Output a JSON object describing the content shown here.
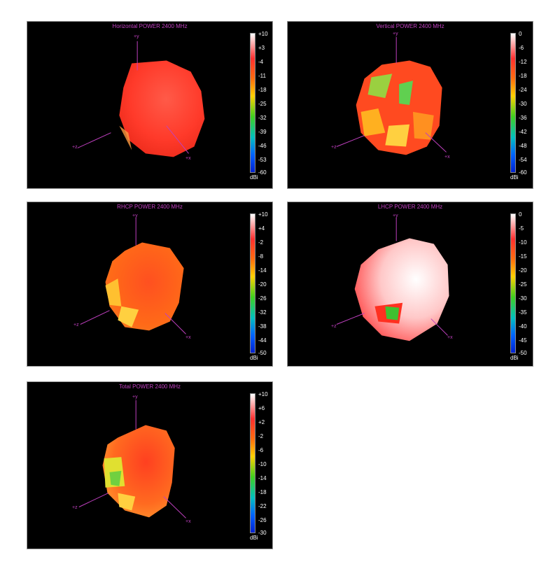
{
  "chart_data": [
    {
      "type": "heatmap",
      "title": "Horizontal POWER 2400  MHz",
      "unit": "dBi",
      "colorbar_ticks": [
        "+10",
        "+3",
        "-4",
        "-11",
        "-18",
        "-25",
        "-32",
        "-39",
        "-46",
        "-53",
        "-60"
      ],
      "axes": [
        "+y",
        "+x",
        "+z"
      ],
      "dominant_level": "-4"
    },
    {
      "type": "heatmap",
      "title": "Vertical POWER 2400  MHz",
      "unit": "dBi",
      "colorbar_ticks": [
        "0",
        "-6",
        "-12",
        "-18",
        "-24",
        "-30",
        "-36",
        "-42",
        "-48",
        "-54",
        "-60"
      ],
      "axes": [
        "+y",
        "+x",
        "+z"
      ],
      "dominant_level": "-12"
    },
    {
      "type": "heatmap",
      "title": "RHCP POWER 2400  MHz",
      "unit": "dBi",
      "colorbar_ticks": [
        "+10",
        "+4",
        "-2",
        "-8",
        "-14",
        "-20",
        "-26",
        "-32",
        "-38",
        "-44",
        "-50"
      ],
      "axes": [
        "+y",
        "+x",
        "+z"
      ],
      "dominant_level": "-2"
    },
    {
      "type": "heatmap",
      "title": "LHCP POWER 2400  MHz",
      "unit": "dBi",
      "colorbar_ticks": [
        "0",
        "-5",
        "-10",
        "-15",
        "-20",
        "-25",
        "-30",
        "-35",
        "-40",
        "-45",
        "-50"
      ],
      "axes": [
        "+y",
        "+x",
        "+z"
      ],
      "dominant_level": "-5"
    },
    {
      "type": "heatmap",
      "title": "Total POWER 2400  MHz",
      "unit": "dBi",
      "colorbar_ticks": [
        "+10",
        "+6",
        "+2",
        "-2",
        "-6",
        "-10",
        "-14",
        "-18",
        "-22",
        "-26",
        "-30"
      ],
      "axes": [
        "+y",
        "+x",
        "+z"
      ],
      "dominant_level": "+2"
    }
  ]
}
